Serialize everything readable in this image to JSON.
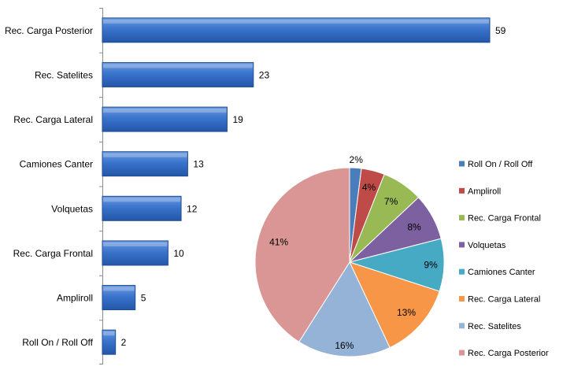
{
  "chart_data": [
    {
      "type": "bar",
      "orientation": "horizontal",
      "categories": [
        "Rec. Carga Posterior",
        "Rec. Satelites",
        "Rec. Carga Lateral",
        "Camiones Canter",
        "Volquetas",
        "Rec. Carga Frontal",
        "Ampliroll",
        "Roll On / Roll Off"
      ],
      "values": [
        59,
        23,
        19,
        13,
        12,
        10,
        5,
        2
      ],
      "data_labels": [
        "59",
        "23",
        "19",
        "13",
        "12",
        "10",
        "5",
        "2"
      ],
      "bar_color": "#2e6bc4",
      "xlim": [
        0,
        59
      ],
      "grid": false,
      "legend": "none"
    },
    {
      "type": "pie",
      "labels": [
        "Roll On / Roll Off",
        "Ampliroll",
        "Rec. Carga Frontal",
        "Volquetas",
        "Camiones Canter",
        "Rec. Carga Lateral",
        "Rec. Satelites",
        "Rec. Carga Posterior"
      ],
      "values": [
        2,
        4,
        7,
        8,
        9,
        13,
        16,
        41
      ],
      "data_labels": [
        "2%",
        "4%",
        "7%",
        "8%",
        "9%",
        "13%",
        "16%",
        "41%"
      ],
      "colors": [
        "#4a7ebb",
        "#be4b48",
        "#98b954",
        "#7d60a0",
        "#46aac5",
        "#f79646",
        "#95b3d7",
        "#d99694"
      ],
      "legend": "right"
    }
  ]
}
